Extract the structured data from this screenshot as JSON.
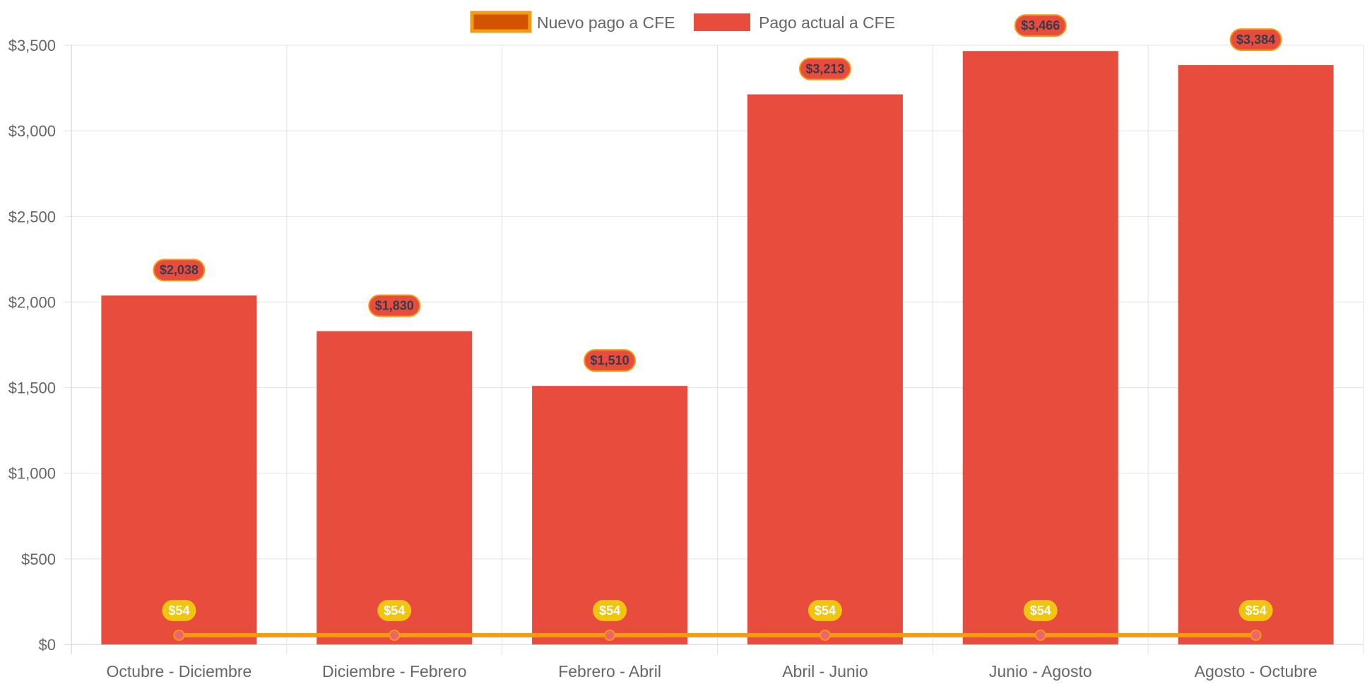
{
  "chart_data": {
    "type": "bar",
    "categories": [
      "Octubre - Diciembre",
      "Diciembre - Febrero",
      "Febrero - Abril",
      "Abril - Junio",
      "Junio - Agosto",
      "Agosto - Octubre"
    ],
    "series": [
      {
        "name": "Nuevo pago a CFE",
        "type": "line",
        "values": [
          54,
          54,
          54,
          54,
          54,
          54
        ],
        "labels": [
          "$54",
          "$54",
          "$54",
          "$54",
          "$54",
          "$54"
        ],
        "color": "#F39C12",
        "legend_fill": "#D35400",
        "point_color": "#F0646E",
        "label_bg": "#F1C40F"
      },
      {
        "name": "Pago actual a CFE",
        "type": "bar",
        "values": [
          2038,
          1830,
          1510,
          3213,
          3466,
          3384
        ],
        "labels": [
          "$2,038",
          "$1,830",
          "$1,510",
          "$3,213",
          "$3,466",
          "$3,384"
        ],
        "color": "#E74C3C",
        "label_border": "#F39C12"
      }
    ],
    "y_ticks": [
      {
        "value": 0,
        "label": "$0"
      },
      {
        "value": 500,
        "label": "$500"
      },
      {
        "value": 1000,
        "label": "$1,000"
      },
      {
        "value": 1500,
        "label": "$1,500"
      },
      {
        "value": 2000,
        "label": "$2,000"
      },
      {
        "value": 2500,
        "label": "$2,500"
      },
      {
        "value": 3000,
        "label": "$3,000"
      },
      {
        "value": 3500,
        "label": "$3,500"
      }
    ],
    "ylim": [
      0,
      3500
    ],
    "grid": true,
    "legend_position": "top-center",
    "title": "",
    "xlabel": "",
    "ylabel": ""
  }
}
